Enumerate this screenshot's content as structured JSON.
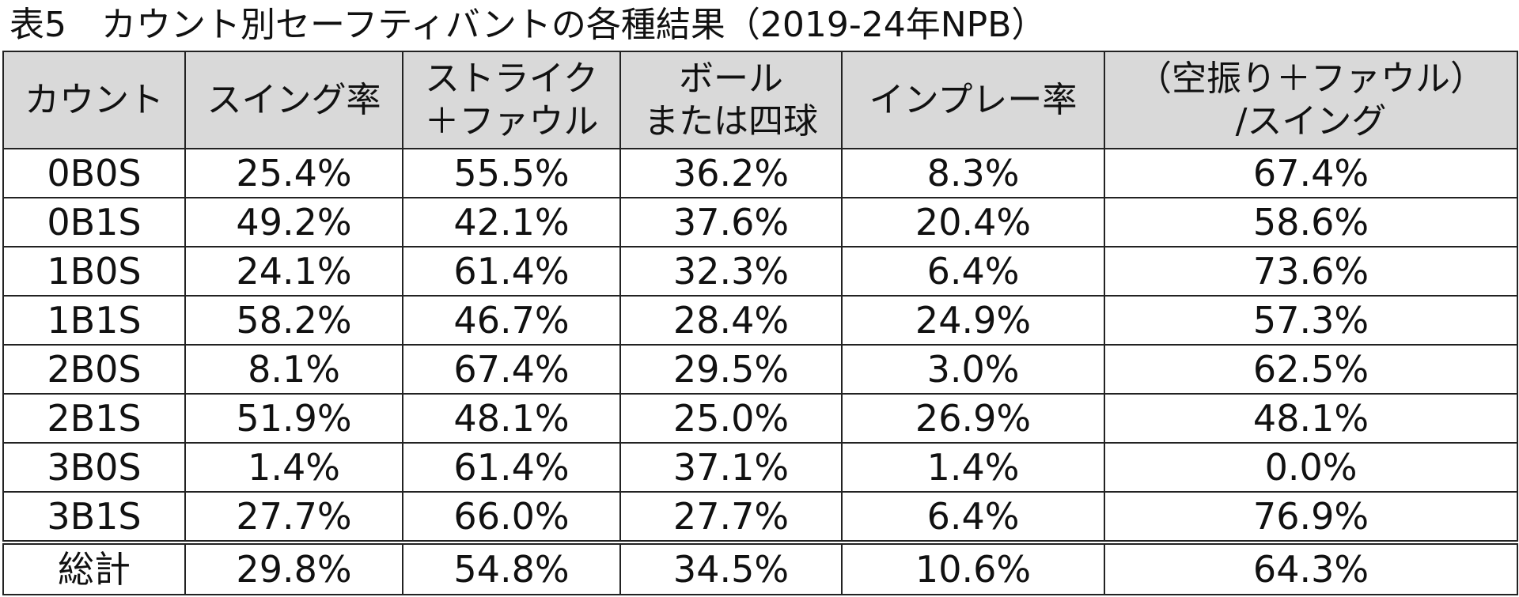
{
  "title": "表5　カウント別セーフティバントの各種結果（2019-24年NPB）",
  "table": {
    "headers": [
      {
        "line1": "カウント",
        "line2": ""
      },
      {
        "line1": "スイング率",
        "line2": ""
      },
      {
        "line1": "ストライク",
        "line2": "＋ファウル"
      },
      {
        "line1": "ボール",
        "line2": "または四球"
      },
      {
        "line1": "インプレー率",
        "line2": ""
      },
      {
        "line1": "（空振り＋ファウル）",
        "line2": "/スイング"
      }
    ],
    "rows": [
      [
        "0B0S",
        "25.4%",
        "55.5%",
        "36.2%",
        "8.3%",
        "67.4%"
      ],
      [
        "0B1S",
        "49.2%",
        "42.1%",
        "37.6%",
        "20.4%",
        "58.6%"
      ],
      [
        "1B0S",
        "24.1%",
        "61.4%",
        "32.3%",
        "6.4%",
        "73.6%"
      ],
      [
        "1B1S",
        "58.2%",
        "46.7%",
        "28.4%",
        "24.9%",
        "57.3%"
      ],
      [
        "2B0S",
        "8.1%",
        "67.4%",
        "29.5%",
        "3.0%",
        "62.5%"
      ],
      [
        "2B1S",
        "51.9%",
        "48.1%",
        "25.0%",
        "26.9%",
        "48.1%"
      ],
      [
        "3B0S",
        "1.4%",
        "61.4%",
        "37.1%",
        "1.4%",
        "0.0%"
      ],
      [
        "3B1S",
        "27.7%",
        "66.0%",
        "27.7%",
        "6.4%",
        "76.9%"
      ]
    ],
    "total": [
      "総計",
      "29.8%",
      "54.8%",
      "34.5%",
      "10.6%",
      "64.3%"
    ]
  },
  "colors": {
    "header_bg": "#d9d9d9",
    "border": "#222222",
    "text": "#111111"
  }
}
